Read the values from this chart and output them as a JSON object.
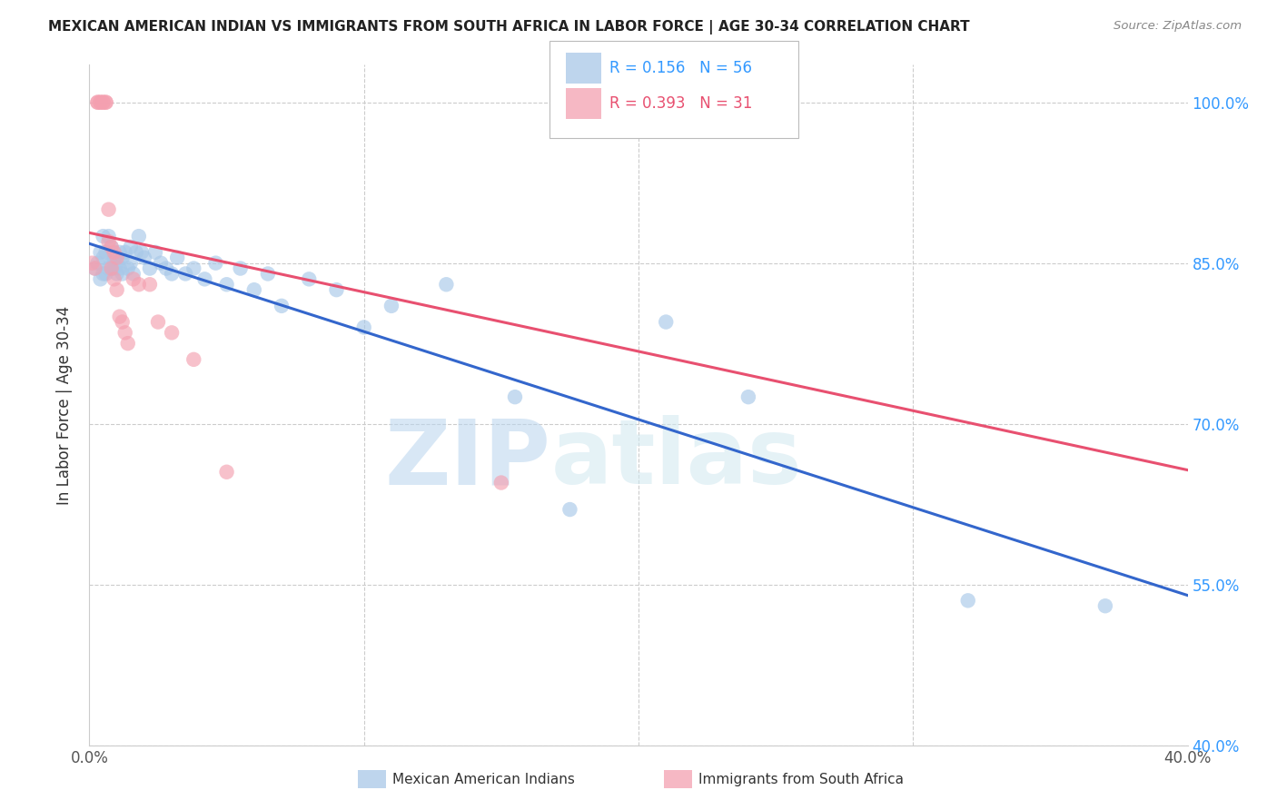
{
  "title": "MEXICAN AMERICAN INDIAN VS IMMIGRANTS FROM SOUTH AFRICA IN LABOR FORCE | AGE 30-34 CORRELATION CHART",
  "source": "Source: ZipAtlas.com",
  "ylabel": "In Labor Force | Age 30-34",
  "y_ticks": [
    40.0,
    55.0,
    70.0,
    85.0,
    100.0
  ],
  "x_ticks": [
    0.0,
    0.1,
    0.2,
    0.3,
    0.4
  ],
  "xlim": [
    0.0,
    0.4
  ],
  "ylim": [
    40.0,
    103.5
  ],
  "legend_blue_label": "Mexican American Indians",
  "legend_pink_label": "Immigrants from South Africa",
  "R_blue": "0.156",
  "N_blue": "56",
  "R_pink": "0.393",
  "N_pink": "31",
  "blue_color": "#A8C8E8",
  "pink_color": "#F4A0B0",
  "blue_line_color": "#3366CC",
  "pink_line_color": "#E85070",
  "watermark_zip": "ZIP",
  "watermark_atlas": "atlas",
  "blue_x": [
    0.002,
    0.003,
    0.004,
    0.004,
    0.005,
    0.005,
    0.005,
    0.006,
    0.006,
    0.007,
    0.007,
    0.008,
    0.008,
    0.009,
    0.009,
    0.01,
    0.01,
    0.011,
    0.011,
    0.012,
    0.012,
    0.013,
    0.014,
    0.015,
    0.015,
    0.016,
    0.017,
    0.018,
    0.019,
    0.02,
    0.022,
    0.024,
    0.026,
    0.028,
    0.03,
    0.032,
    0.035,
    0.038,
    0.042,
    0.046,
    0.05,
    0.055,
    0.06,
    0.065,
    0.07,
    0.08,
    0.09,
    0.1,
    0.11,
    0.13,
    0.155,
    0.175,
    0.21,
    0.24,
    0.32,
    0.37
  ],
  "blue_y": [
    84.5,
    85.0,
    83.5,
    86.0,
    84.0,
    85.5,
    87.5,
    84.0,
    86.0,
    84.5,
    87.5,
    85.0,
    86.5,
    84.5,
    85.5,
    85.0,
    84.0,
    86.0,
    84.5,
    85.5,
    84.0,
    86.0,
    84.5,
    86.5,
    85.0,
    84.0,
    86.0,
    87.5,
    86.0,
    85.5,
    84.5,
    86.0,
    85.0,
    84.5,
    84.0,
    85.5,
    84.0,
    84.5,
    83.5,
    85.0,
    83.0,
    84.5,
    82.5,
    84.0,
    81.0,
    83.5,
    82.5,
    79.0,
    81.0,
    83.0,
    72.5,
    62.0,
    79.5,
    72.5,
    53.5,
    53.0
  ],
  "pink_x": [
    0.001,
    0.002,
    0.003,
    0.003,
    0.004,
    0.004,
    0.005,
    0.005,
    0.006,
    0.006,
    0.007,
    0.007,
    0.008,
    0.008,
    0.009,
    0.009,
    0.01,
    0.01,
    0.011,
    0.012,
    0.013,
    0.014,
    0.016,
    0.018,
    0.022,
    0.025,
    0.03,
    0.038,
    0.05,
    0.15,
    0.19
  ],
  "pink_y": [
    85.0,
    84.5,
    100.0,
    100.0,
    100.0,
    100.0,
    100.0,
    100.0,
    100.0,
    100.0,
    90.0,
    87.0,
    86.5,
    84.5,
    86.0,
    83.5,
    82.5,
    85.5,
    80.0,
    79.5,
    78.5,
    77.5,
    83.5,
    83.0,
    83.0,
    79.5,
    78.5,
    76.0,
    65.5,
    64.5,
    100.0
  ]
}
